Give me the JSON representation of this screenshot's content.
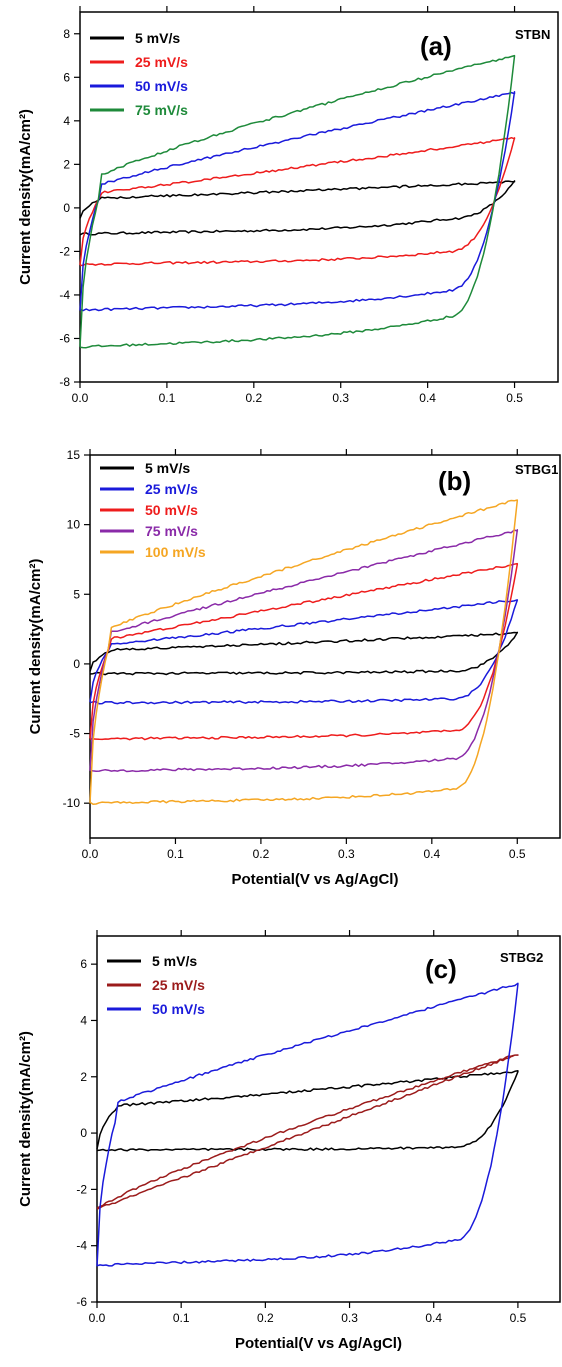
{
  "chart_data": [
    {
      "type": "line",
      "panel_label": "(a)",
      "sample": "STBN",
      "ylabel": "Current density(mA/cm²)",
      "xlabel": "",
      "xlim": [
        0.0,
        0.55
      ],
      "ylim": [
        -8,
        9
      ],
      "xticks": [
        "0.0",
        "0.1",
        "0.2",
        "0.3",
        "0.4",
        "0.5"
      ],
      "yticks": [
        "-8",
        "-6",
        "-4",
        "-2",
        "0",
        "2",
        "4",
        "6",
        "8"
      ],
      "legend_position": "top-left",
      "series": [
        {
          "name": "5 mV/s",
          "color": "#000000",
          "upper_start": -0.5,
          "upper_end": 1.2,
          "lower_start": -1.2,
          "lower_end": 0.8,
          "lower_mid": -0.5,
          "n": 0.05
        },
        {
          "name": "25 mV/s",
          "color": "#ee1c1c",
          "upper_start": -2.6,
          "upper_end": 3.2,
          "lower_start": -2.6,
          "lower_end": 2.6,
          "lower_mid": -2.0,
          "n": 0.15
        },
        {
          "name": "50 mV/s",
          "color": "#1a1adb",
          "upper_start": -4.7,
          "upper_end": 5.3,
          "lower_start": -4.7,
          "lower_end": 4.5,
          "lower_mid": -3.8,
          "n": 0.3
        },
        {
          "name": "75 mV/s",
          "color": "#1e8a3a",
          "upper_start": -6.4,
          "upper_end": 7.0,
          "lower_start": -6.4,
          "lower_end": 6.0,
          "lower_mid": -5.0,
          "n": 0.4
        }
      ]
    },
    {
      "type": "line",
      "panel_label": "(b)",
      "sample": "STBG1",
      "ylabel": "Current density(mA/cm²)",
      "xlabel": "Potential(V vs Ag/AgCl)",
      "xlim": [
        0.0,
        0.55
      ],
      "ylim": [
        -12.5,
        15
      ],
      "xticks": [
        "0.0",
        "0.1",
        "0.2",
        "0.3",
        "0.4",
        "0.5"
      ],
      "yticks": [
        "-10",
        "-5",
        "0",
        "5",
        "10",
        "15"
      ],
      "legend_position": "top-left",
      "series": [
        {
          "name": "5 mV/s",
          "color": "#000000",
          "upper_start": -0.5,
          "upper_end": 2.2,
          "lower_start": -0.7,
          "lower_end": 1.5,
          "lower_mid": -0.5,
          "n": 0.05
        },
        {
          "name": "25 mV/s",
          "color": "#1a1adb",
          "upper_start": -2.8,
          "upper_end": 4.6,
          "lower_start": -2.8,
          "lower_end": 3.5,
          "lower_mid": -2.5,
          "n": 0.15
        },
        {
          "name": "50 mV/s",
          "color": "#ee1c1c",
          "upper_start": -5.4,
          "upper_end": 7.2,
          "lower_start": -5.4,
          "lower_end": 5.5,
          "lower_mid": -4.8,
          "n": 0.2
        },
        {
          "name": "75 mV/s",
          "color": "#8a2aa8",
          "upper_start": -7.7,
          "upper_end": 9.6,
          "lower_start": -7.7,
          "lower_end": 7.5,
          "lower_mid": -6.8,
          "n": 0.25
        },
        {
          "name": "100 mV/s",
          "color": "#f5a623",
          "upper_start": -10.0,
          "upper_end": 11.8,
          "lower_start": -10.0,
          "lower_end": 9.5,
          "lower_mid": -9.0,
          "n": 0.3
        }
      ]
    },
    {
      "type": "line",
      "panel_label": "(c)",
      "sample": "STBG2",
      "ylabel": "Current density(mA/cm²)",
      "xlabel": "Potential(V vs Ag/AgCl)",
      "xlim": [
        0.0,
        0.55
      ],
      "ylim": [
        -6,
        7
      ],
      "xticks": [
        "0.0",
        "0.1",
        "0.2",
        "0.3",
        "0.4",
        "0.5"
      ],
      "yticks": [
        "-6",
        "-4",
        "-2",
        "0",
        "2",
        "4",
        "6"
      ],
      "legend_position": "top-left",
      "series": [
        {
          "name": "5 mV/s",
          "color": "#000000",
          "upper_start": -0.6,
          "upper_end": 2.2,
          "lower_start": -0.6,
          "lower_end": 1.6,
          "lower_mid": -0.5,
          "n": 0.05
        },
        {
          "name": "25 mV/s",
          "color": "#9b1b1b",
          "upper_start": -2.7,
          "upper_end": 2.8,
          "lower_start": -2.7,
          "lower_end": 2.8,
          "lower_mid": -1.6,
          "n": 1.0
        },
        {
          "name": "50 mV/s",
          "color": "#1a1adb",
          "upper_start": -4.7,
          "upper_end": 5.3,
          "lower_start": -4.7,
          "lower_end": 4.0,
          "lower_mid": -3.8,
          "n": 0.3
        }
      ]
    }
  ]
}
